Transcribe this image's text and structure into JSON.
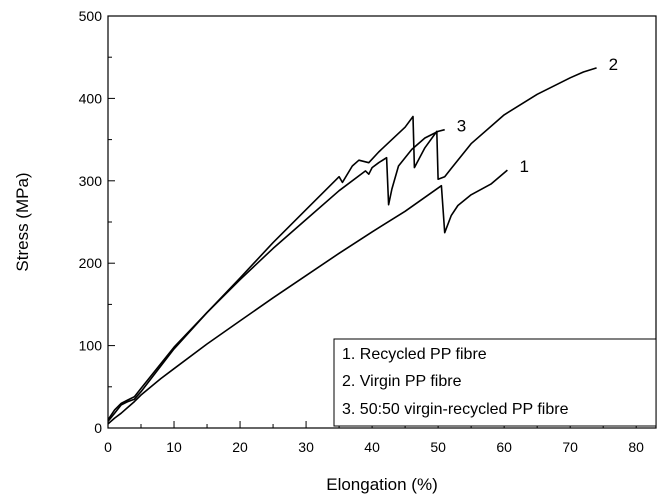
{
  "chart_data": {
    "type": "line",
    "title": "",
    "xlabel": "Elongation (%)",
    "ylabel": "Stress (MPa)",
    "xlim": [
      0,
      83
    ],
    "ylim": [
      0,
      500
    ],
    "x_ticks": [
      "0",
      "10",
      "20",
      "30",
      "40",
      "50",
      "60",
      "70",
      "80"
    ],
    "y_ticks": [
      "0",
      "100",
      "200",
      "300",
      "400",
      "500"
    ],
    "grid": false,
    "legend_position": "bottom-right",
    "legend": [
      "1. Recycled PP fibre",
      "2. Virgin PP fibre",
      "3. 50:50 virgin-recycled PP fibre"
    ],
    "series": [
      {
        "end_label": "1",
        "x": [
          0,
          1,
          2,
          3,
          4,
          5,
          8,
          10,
          15,
          20,
          25,
          30,
          35,
          40,
          45,
          50.5,
          51.0,
          52,
          53,
          55,
          58,
          60.5
        ],
        "y": [
          5,
          12,
          18,
          25,
          32,
          40,
          60,
          72,
          102,
          130,
          158,
          185,
          212,
          238,
          263,
          294,
          237,
          258,
          270,
          283,
          296,
          313
        ]
      },
      {
        "end_label": "2",
        "x": [
          0,
          1,
          2,
          3,
          4,
          5,
          10,
          15,
          20,
          25,
          30,
          35,
          35.5,
          37,
          38,
          39.5,
          41,
          43,
          45,
          46.2,
          46.4,
          48,
          49.8,
          50.0,
          51,
          52,
          55,
          60,
          65,
          70,
          72,
          74
        ],
        "y": [
          8,
          18,
          28,
          32,
          35,
          44,
          96,
          140,
          182,
          225,
          265,
          305,
          298,
          318,
          325,
          322,
          335,
          350,
          365,
          378,
          316,
          340,
          360,
          302,
          305,
          315,
          345,
          380,
          405,
          425,
          432,
          437
        ]
      },
      {
        "end_label": "3",
        "x": [
          0,
          1,
          2,
          3,
          4,
          5,
          10,
          15,
          20,
          25,
          30,
          35,
          39,
          39.5,
          40,
          41,
          42.2,
          42.5,
          43,
          44,
          46,
          48,
          50,
          51
        ],
        "y": [
          10,
          22,
          30,
          34,
          38,
          48,
          98,
          140,
          180,
          218,
          253,
          288,
          312,
          308,
          316,
          322,
          328,
          271,
          290,
          318,
          338,
          352,
          360,
          362
        ]
      }
    ]
  }
}
